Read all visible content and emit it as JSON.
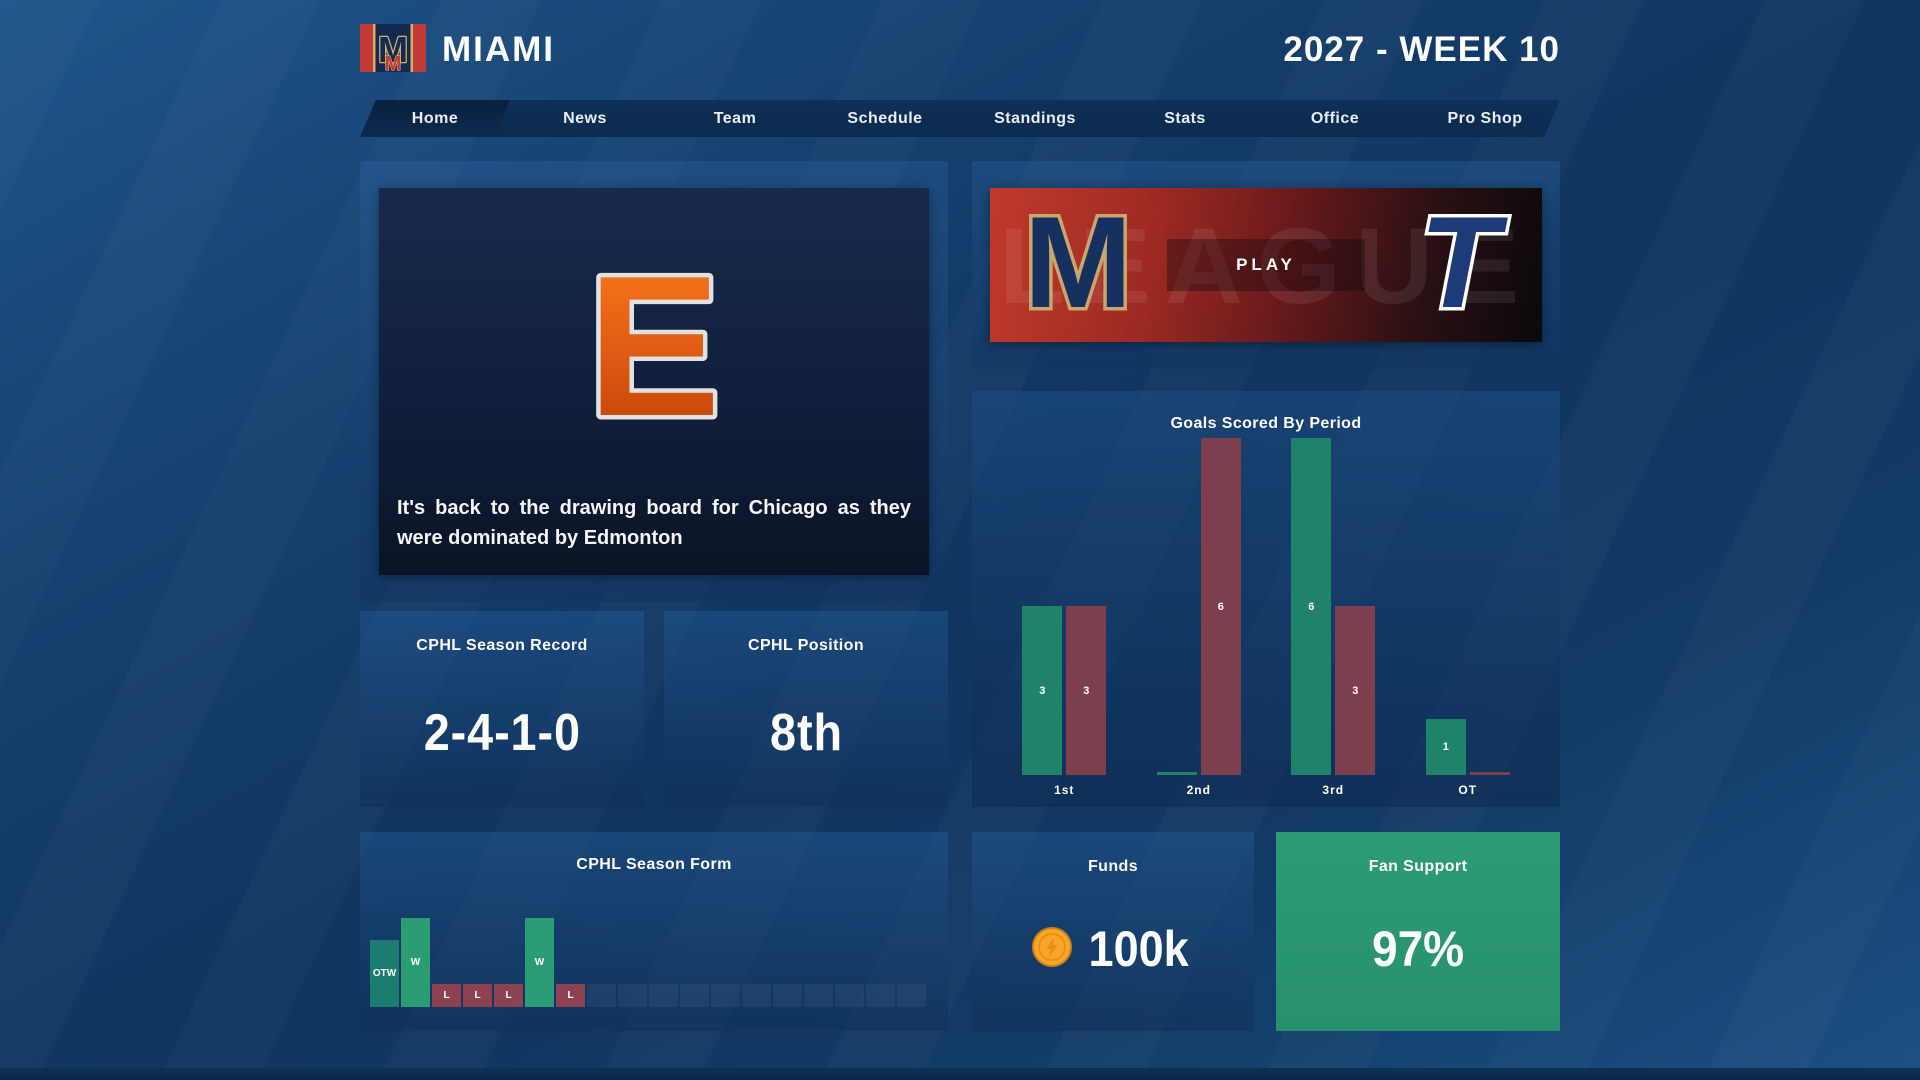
{
  "header": {
    "team_name": "MIAMI",
    "week_label": "2027 - WEEK 10",
    "logo": {
      "icon": "miami-m-logo",
      "letter": "M",
      "stripe_color": "#c23b38",
      "field_color": "#122a52",
      "trim_color": "#d6b069"
    }
  },
  "nav": {
    "items": [
      {
        "label": "Home",
        "active": true
      },
      {
        "label": "News",
        "active": false
      },
      {
        "label": "Team",
        "active": false
      },
      {
        "label": "Schedule",
        "active": false
      },
      {
        "label": "Standings",
        "active": false
      },
      {
        "label": "Stats",
        "active": false
      },
      {
        "label": "Office",
        "active": false
      },
      {
        "label": "Pro Shop",
        "active": false
      }
    ]
  },
  "news": {
    "team_logo": {
      "icon": "edmonton-e-logo",
      "letter": "E",
      "fill_top": "#ff7c1e",
      "fill_bottom": "#bf3e08",
      "outline": "#e2e2e2"
    },
    "headline": "It's back to the drawing board for Chicago as they were dominated by Edmonton"
  },
  "matchup": {
    "home_logo": {
      "icon": "miami-m-crest",
      "letter": "M",
      "fill": "#16305f",
      "outline": "#c9a66b"
    },
    "away_logo": {
      "icon": "toronto-t-crest",
      "letter": "T",
      "fill": "#1c3b78",
      "outline": "#ffffff"
    },
    "play_label": "PLAY",
    "watermark": "LEAGUE"
  },
  "stats": {
    "record": {
      "title": "CPHL Season Record",
      "value": "2-4-1-0"
    },
    "position": {
      "title": "CPHL Position",
      "value": "8th"
    },
    "funds": {
      "title": "Funds",
      "value": "100k",
      "icon": "coin-icon"
    },
    "fan_support": {
      "title": "Fan Support",
      "value": "97%",
      "color": "#2d9b77"
    }
  },
  "chart_data": [
    {
      "id": "goals_by_period",
      "type": "bar",
      "title": "Goals Scored By Period",
      "categories": [
        "1st",
        "2nd",
        "3rd",
        "OT"
      ],
      "series": [
        {
          "name": "goals-for",
          "color": "#21826a",
          "values": [
            3,
            0,
            6,
            1
          ]
        },
        {
          "name": "goals-against",
          "color": "#7d3e4e",
          "values": [
            3,
            6,
            3,
            0
          ]
        }
      ],
      "ylim": [
        0,
        6
      ],
      "grid": false,
      "legend": "none",
      "bar_value_labels": true
    },
    {
      "id": "season_form",
      "type": "bar",
      "title": "CPHL Season Form",
      "total_slots": 18,
      "results": [
        {
          "label": "OTW",
          "value": 3,
          "color": "#1d7c70"
        },
        {
          "label": "W",
          "value": 4,
          "color": "#2a9d74"
        },
        {
          "label": "L",
          "value": 1,
          "color": "#8c4253"
        },
        {
          "label": "L",
          "value": 1,
          "color": "#8c4253"
        },
        {
          "label": "L",
          "value": 1,
          "color": "#8c4253"
        },
        {
          "label": "W",
          "value": 4,
          "color": "#2a9d74"
        },
        {
          "label": "L",
          "value": 1,
          "color": "#8c4253"
        }
      ],
      "empty_slot_color": "rgba(255,255,255,0.05)"
    }
  ]
}
